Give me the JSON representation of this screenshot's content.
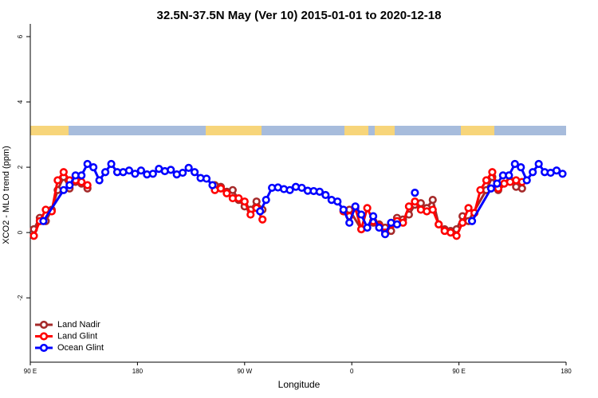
{
  "chart_data": {
    "type": "line",
    "title": "32.5N-37.5N May (Ver 10)   2015-01-01 to 2020-12-18",
    "xlabel": "Longitude",
    "ylabel": "XCO2 - MLO trend (ppm)",
    "xlim": [
      90,
      540
    ],
    "ylim": [
      -3.97,
      6.39
    ],
    "xticks": [
      {
        "value": 90,
        "label": "90 E"
      },
      180,
      {
        "value": 270,
        "label": "90 W"
      },
      {
        "value": 360,
        "label": "0"
      },
      {
        "value": 450,
        "label": "90 E"
      },
      {
        "value": 540,
        "label": "180"
      }
    ],
    "yticks": [
      -2,
      0,
      2,
      4,
      6
    ],
    "legend": "bottom-left",
    "series": [
      {
        "name": "Land Nadir",
        "color": "#a52a2a",
        "x": [
          93,
          98,
          103,
          108,
          113,
          118,
          123,
          128,
          133,
          138,
          190,
          245,
          250,
          255,
          260,
          265,
          270,
          275,
          280,
          285,
          320,
          358,
          368,
          378,
          383,
          388,
          393,
          398,
          403,
          408,
          413,
          418,
          423,
          428,
          433,
          438,
          443,
          448,
          453,
          458,
          473,
          478,
          483,
          493,
          498,
          503
        ],
        "values": [
          0.1,
          0.45,
          0.35,
          0.7,
          1.3,
          1.7,
          1.35,
          1.55,
          1.5,
          1.35,
          null,
          1.45,
          1.4,
          1.25,
          1.3,
          1.0,
          0.8,
          0.7,
          0.95,
          0.7,
          null,
          0.7,
          0.1,
          0.3,
          0.25,
          0.15,
          0.05,
          0.45,
          0.4,
          0.55,
          0.85,
          0.9,
          0.75,
          1.0,
          0.25,
          0.1,
          0.05,
          0.1,
          0.5,
          0.35,
          1.3,
          1.7,
          1.3,
          1.6,
          1.4,
          1.35
        ]
      },
      {
        "name": "Land Glint",
        "color": "#ff0000",
        "x": [
          93,
          98,
          103,
          108,
          113,
          118,
          123,
          128,
          133,
          138,
          190,
          245,
          250,
          255,
          260,
          265,
          270,
          275,
          280,
          285,
          320,
          353,
          358,
          363,
          368,
          373,
          378,
          383,
          388,
          393,
          398,
          403,
          408,
          413,
          418,
          423,
          428,
          433,
          438,
          443,
          448,
          453,
          458,
          463,
          468,
          473,
          478,
          483,
          488,
          493,
          498,
          503
        ],
        "values": [
          -0.1,
          0.35,
          0.7,
          0.65,
          1.6,
          1.85,
          1.6,
          1.6,
          1.55,
          1.45,
          null,
          1.3,
          1.35,
          1.2,
          1.05,
          1.05,
          0.95,
          0.55,
          0.75,
          0.4,
          null,
          0.65,
          0.5,
          0.75,
          0.1,
          0.75,
          0.35,
          0.2,
          0.0,
          0.25,
          0.35,
          0.3,
          0.8,
          0.95,
          0.7,
          0.65,
          0.7,
          0.25,
          0.05,
          0.0,
          -0.1,
          0.3,
          0.75,
          0.6,
          1.3,
          1.6,
          1.85,
          1.35,
          1.5,
          1.55,
          1.6,
          1.55
        ]
      },
      {
        "name": "Ocean Glint",
        "color": "#0000ff",
        "x": [
          101,
          118,
          123,
          128,
          133,
          138,
          143,
          148,
          153,
          158,
          163,
          168,
          173,
          178,
          183,
          188,
          193,
          198,
          203,
          208,
          213,
          218,
          223,
          228,
          233,
          238,
          243,
          263,
          283,
          288,
          293,
          298,
          303,
          308,
          313,
          318,
          323,
          328,
          333,
          338,
          343,
          348,
          353,
          358,
          363,
          368,
          373,
          378,
          383,
          388,
          393,
          398,
          405,
          413,
          437,
          461,
          477,
          482,
          487,
          492,
          497,
          502,
          507,
          512,
          517,
          522,
          527,
          532,
          537
        ],
        "values": [
          0.35,
          1.3,
          1.45,
          1.75,
          1.75,
          2.1,
          2.0,
          1.6,
          1.85,
          2.1,
          1.85,
          1.85,
          1.9,
          1.8,
          1.9,
          1.78,
          1.8,
          1.95,
          1.88,
          1.92,
          1.78,
          1.83,
          1.98,
          1.85,
          1.67,
          1.65,
          1.45,
          null,
          0.65,
          1.0,
          1.37,
          1.38,
          1.33,
          1.3,
          1.4,
          1.37,
          1.28,
          1.27,
          1.25,
          1.15,
          1.0,
          0.95,
          0.7,
          0.3,
          0.8,
          0.55,
          0.15,
          0.5,
          0.15,
          -0.05,
          0.3,
          0.25,
          null,
          1.22,
          null,
          0.35,
          1.35,
          1.5,
          1.75,
          1.75,
          2.1,
          2.0,
          1.6,
          1.85,
          2.1,
          1.85,
          1.83,
          1.9,
          1.8
        ]
      }
    ]
  }
}
